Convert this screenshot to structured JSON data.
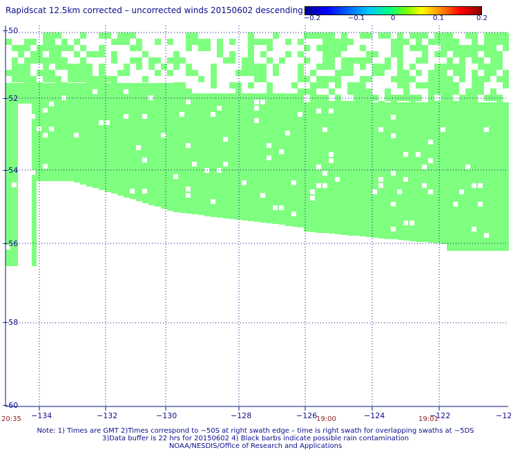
{
  "title": "Rapidscat 12.5km corrected – uncorrected winds 20150602 descending",
  "colorbar": {
    "labels": [
      "−0.2",
      "−0.1",
      "0",
      "0.1",
      "0.2"
    ]
  },
  "axes": {
    "lon_ticks": [
      "−134",
      "−132",
      "−130",
      "−128",
      "−126",
      "−124",
      "−122",
      "−12"
    ],
    "lat_ticks": [
      "−50",
      "−52",
      "−54",
      "−56",
      "−58",
      "−60"
    ]
  },
  "times": [
    "20:35",
    "19:00",
    "19:01"
  ],
  "notes": [
    "Note: 1) Times are GMT 2)Times correspond to −50S at right swath edge – time is right swath for overlapping swaths at −5DS",
    "3)Data buffer is 22 hrs for 20150602 4) Black barbs indicate possible rain contamination",
    "NOAA/NESDIS/Office of Research and Applications"
  ],
  "colors": {
    "swath": "#7fff7f",
    "axis": "#0b0b8c",
    "grid": "#00007f",
    "time": "#8b1a1a"
  }
}
